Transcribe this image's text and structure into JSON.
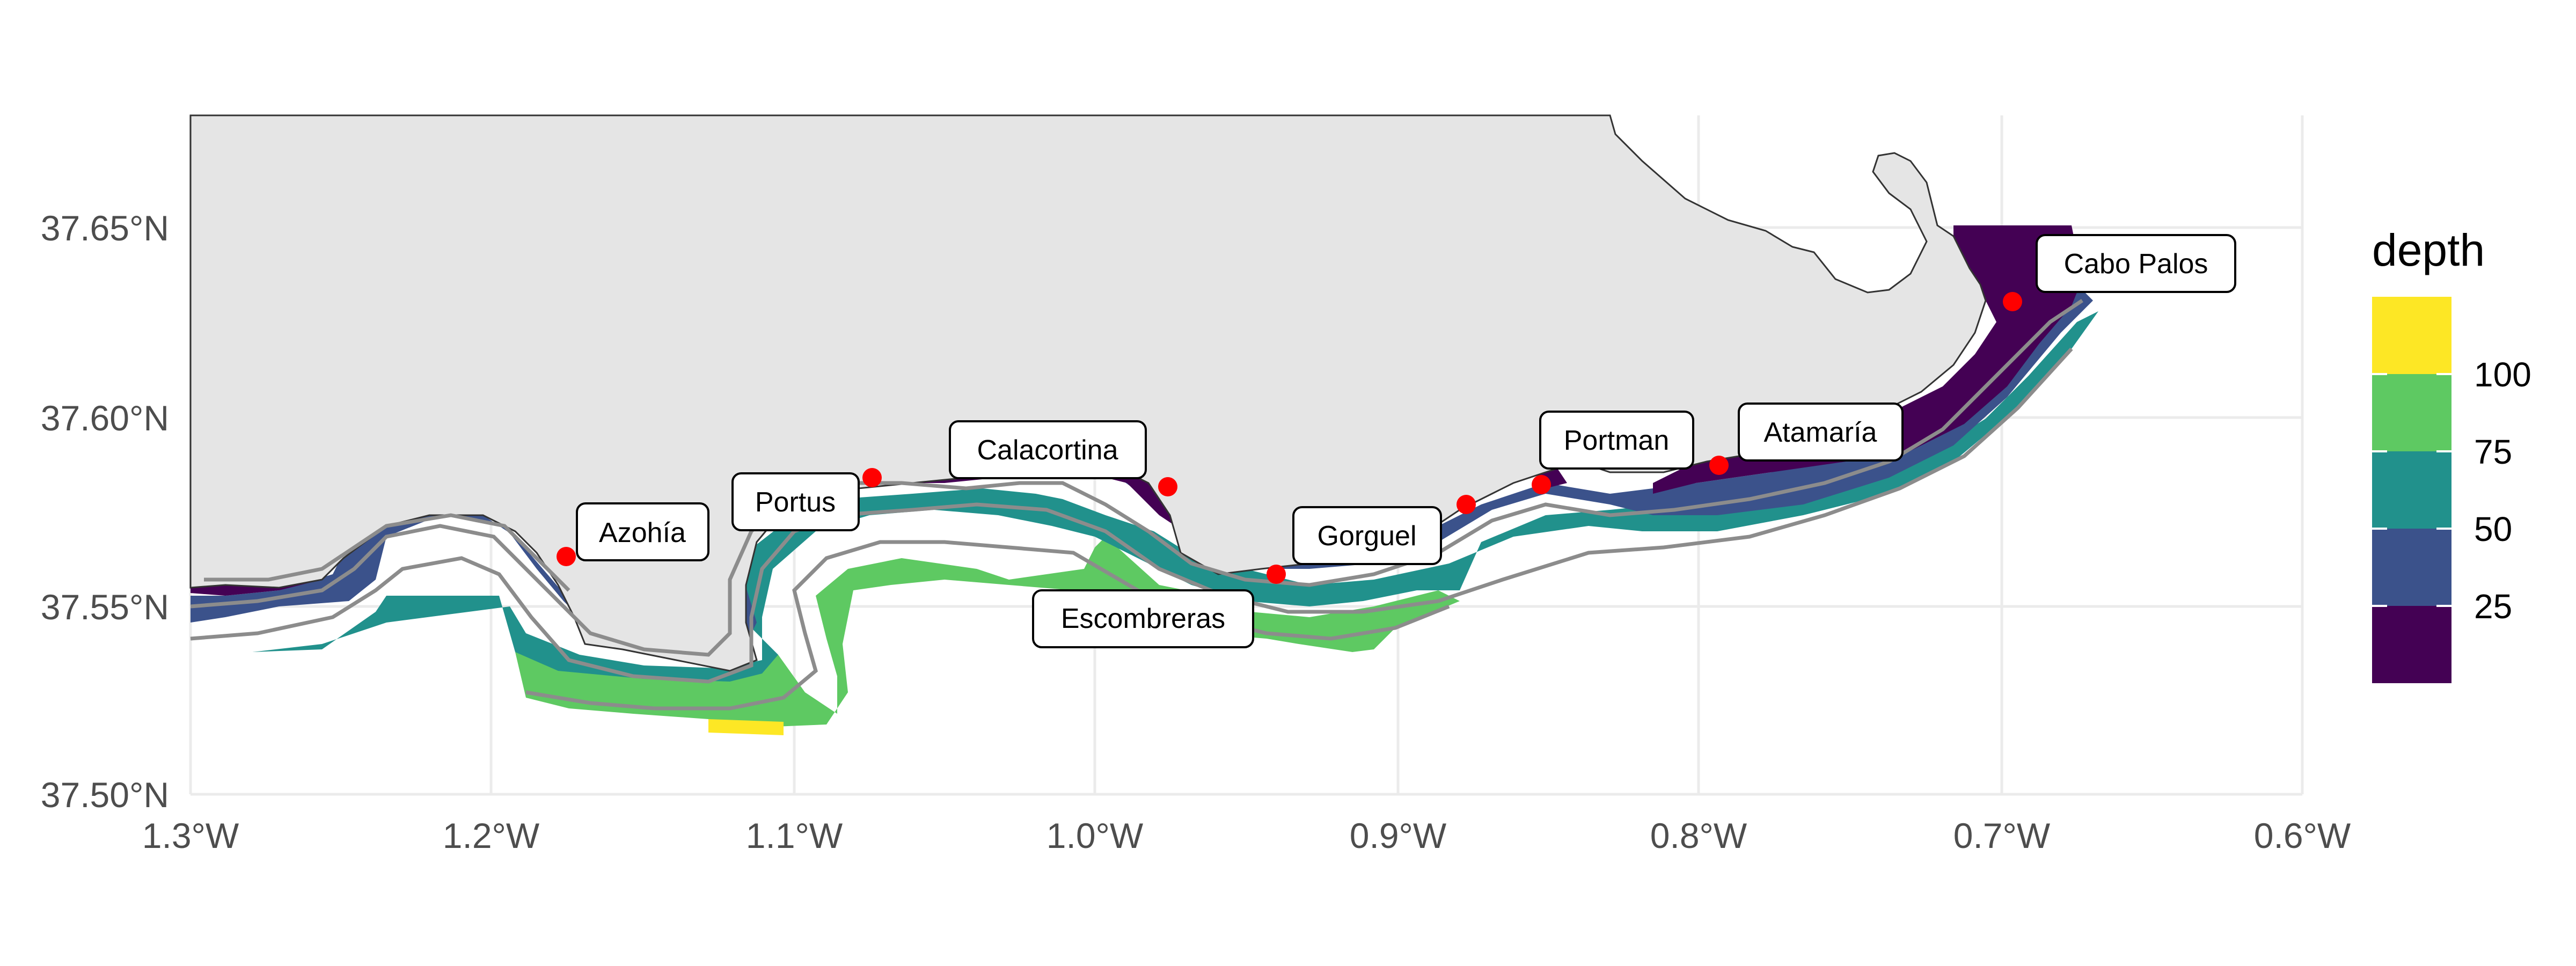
{
  "map": {
    "x_axis": {
      "ticks": [
        "1.3°W",
        "1.2°W",
        "1.1°W",
        "1.0°W",
        "0.9°W",
        "0.8°W",
        "0.7°W",
        "0.6°W"
      ]
    },
    "y_axis": {
      "ticks": [
        "37.50°N",
        "37.55°N",
        "37.60°N",
        "37.65°N"
      ]
    },
    "colors": {
      "land": "#e5e5e5",
      "coastline": "#333333",
      "grid": "#ebebeb",
      "contour": "#8c8c8c",
      "site_point": "#ff0000"
    },
    "sites": [
      {
        "name": "Azohía",
        "lon": -1.174,
        "lat": 37.564
      },
      {
        "name": "Portus",
        "lon": -1.074,
        "lat": 37.584
      },
      {
        "name": "Calacortina",
        "lon": -0.976,
        "lat": 37.582
      },
      {
        "name": "Escombreras",
        "lon": -0.94,
        "lat": 37.559
      },
      {
        "name": "Gorguel",
        "lon": -0.877,
        "lat": 37.577
      },
      {
        "name": "Portman",
        "lon": -0.851,
        "lat": 37.582
      },
      {
        "name": "Atamaría",
        "lon": -0.792,
        "lat": 37.587
      },
      {
        "name": "Cabo Palos",
        "lon": -0.695,
        "lat": 37.63
      }
    ]
  },
  "legend": {
    "title": "depth",
    "position": "right",
    "colors": [
      "#fde725",
      "#5ec962",
      "#21918c",
      "#3b528b",
      "#440154"
    ],
    "ticks": [
      "100",
      "75",
      "50",
      "25"
    ]
  }
}
